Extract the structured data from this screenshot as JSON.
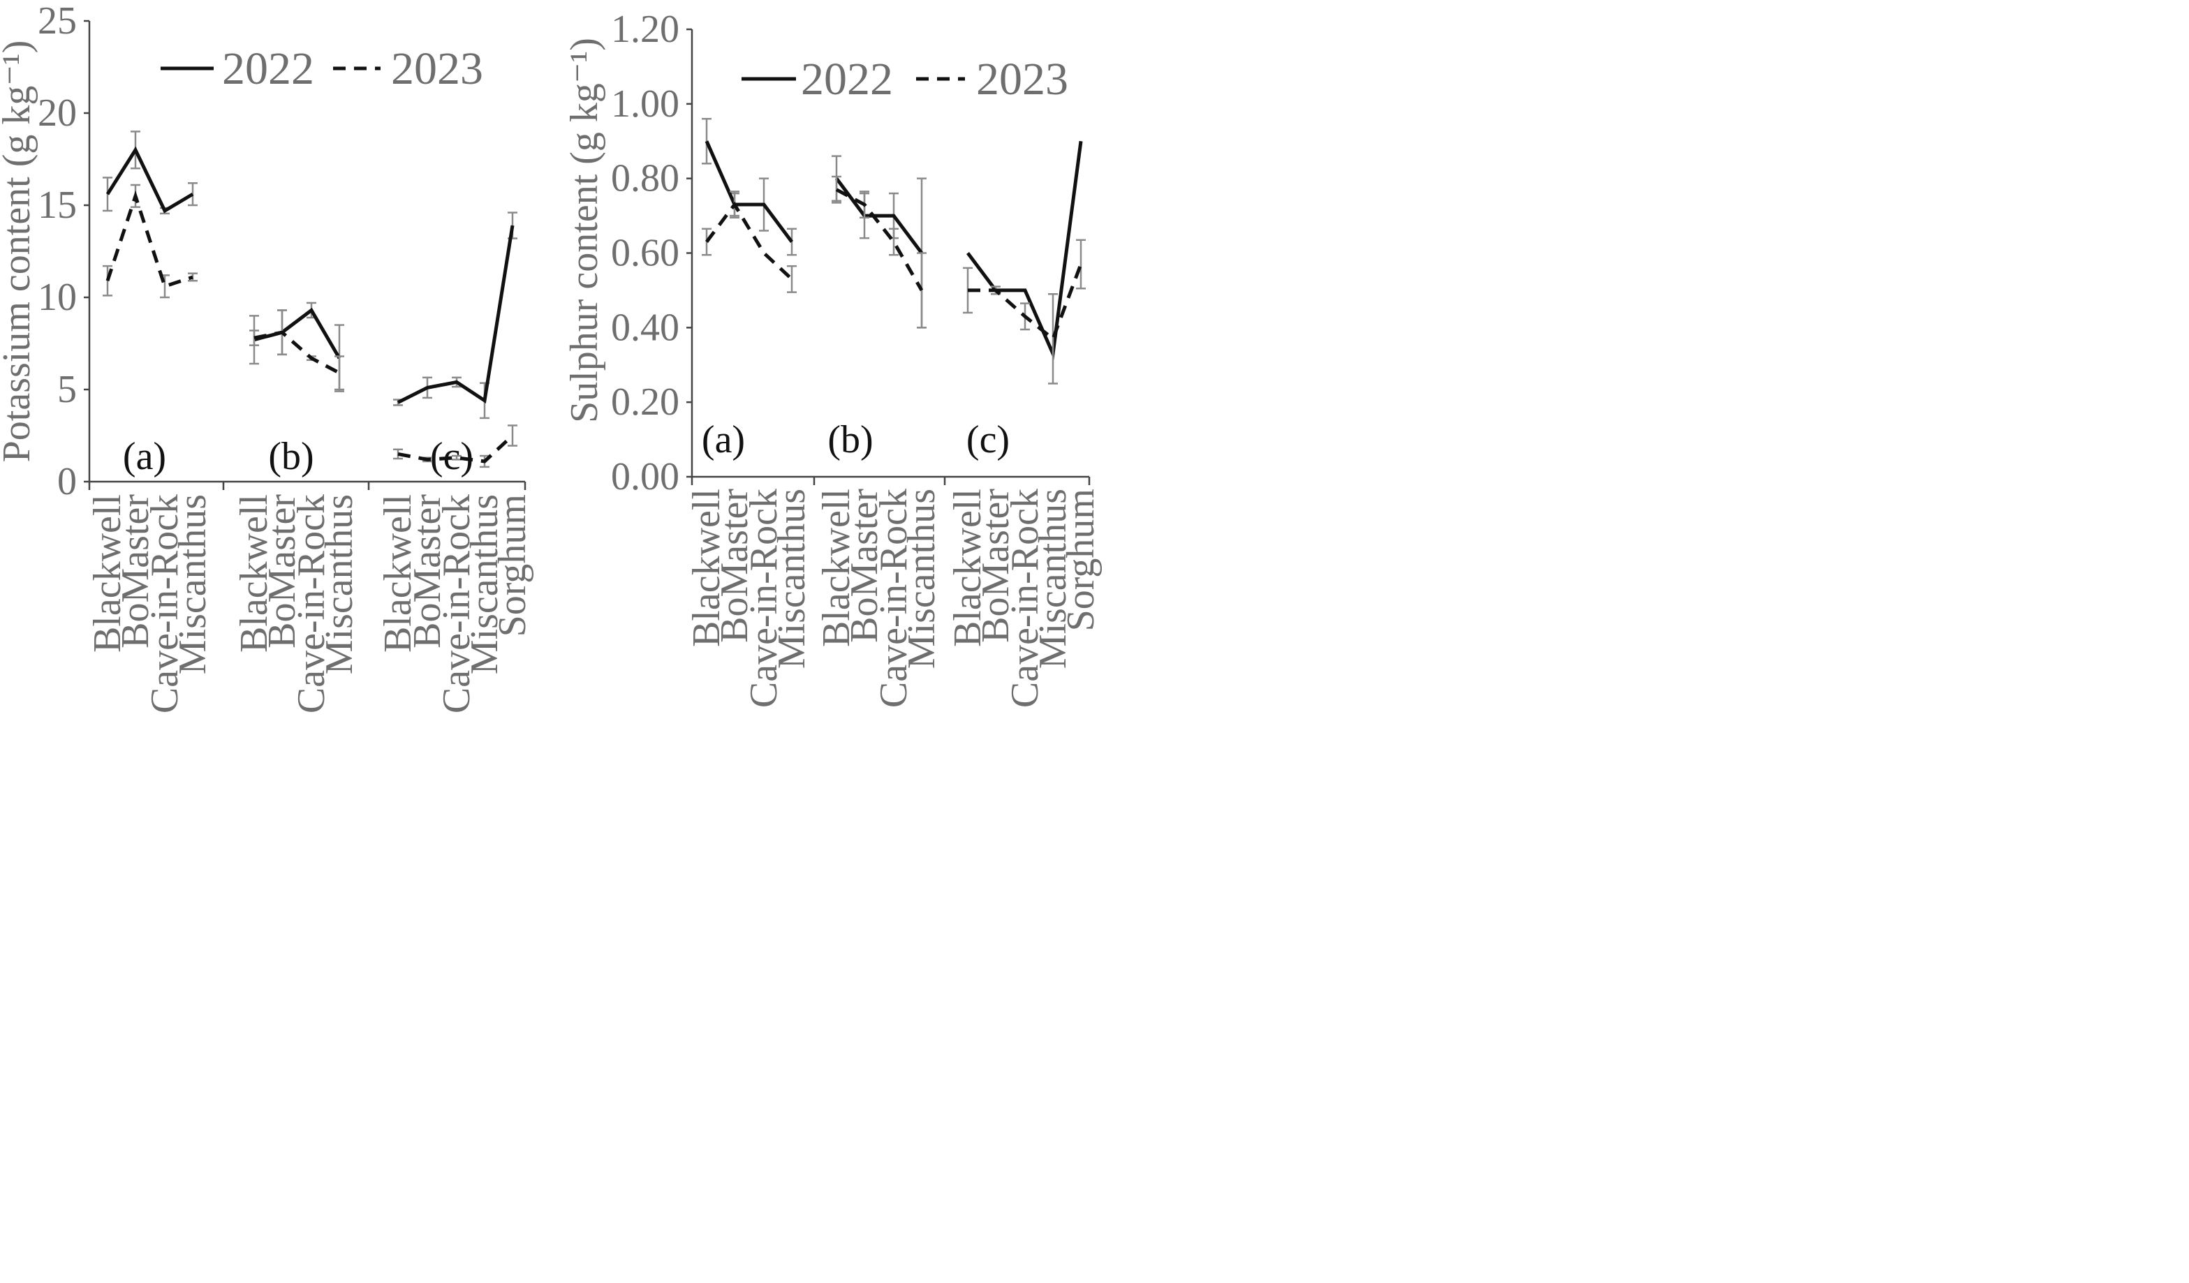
{
  "chart_data": [
    {
      "type": "line",
      "ylabel": "Potassium content (g kg⁻¹)",
      "ylim": [
        0,
        25
      ],
      "yticks": [
        0,
        5,
        10,
        15,
        20,
        25
      ],
      "tick_labels": [
        "0",
        "5",
        "10",
        "15",
        "20",
        "25"
      ],
      "legend": [
        "2022",
        "2023"
      ],
      "groups": [
        {
          "label": "(a)",
          "categories": [
            "Blackwell",
            "BoMaster",
            "Cave-in-Rock",
            "Miscanthus"
          ],
          "series": [
            {
              "name": "2022",
              "values": [
                15.6,
                18.0,
                14.7,
                15.6
              ],
              "errors": [
                0.9,
                1.0,
                0.15,
                0.6
              ]
            },
            {
              "name": "2023",
              "values": [
                10.9,
                15.5,
                10.6,
                11.1
              ],
              "errors": [
                0.8,
                0.6,
                0.6,
                0.2
              ]
            }
          ]
        },
        {
          "label": "(b)",
          "categories": [
            "Blackwell",
            "BoMaster",
            "Cave-in-Rock",
            "Miscanthus"
          ],
          "series": [
            {
              "name": "2022",
              "values": [
                7.7,
                8.1,
                9.3,
                6.7
              ],
              "errors": [
                1.3,
                1.2,
                0.4,
                1.8
              ]
            },
            {
              "name": "2023",
              "values": [
                7.8,
                8.1,
                6.7,
                5.9
              ],
              "errors": [
                0.4,
                1.2,
                0.1,
                0.9
              ]
            }
          ]
        },
        {
          "label": "(c)",
          "categories": [
            "Blackwell",
            "BoMaster",
            "Cave-in-Rock",
            "Miscanthus",
            "Sorghum"
          ],
          "series": [
            {
              "name": "2022",
              "values": [
                4.3,
                5.1,
                5.4,
                4.4,
                13.9
              ],
              "errors": [
                0.15,
                0.55,
                0.25,
                0.95,
                0.7
              ]
            },
            {
              "name": "2023",
              "values": [
                1.5,
                1.2,
                1.3,
                1.1,
                2.5
              ],
              "errors": [
                0.25,
                0.1,
                0.1,
                0.3,
                0.55
              ]
            }
          ]
        }
      ]
    },
    {
      "type": "line",
      "ylabel": "Sulphur content (g kg⁻¹)",
      "ylim": [
        0,
        1.2
      ],
      "yticks": [
        0,
        0.2,
        0.4,
        0.6,
        0.8,
        1.0,
        1.2
      ],
      "tick_labels": [
        "0.00",
        "0.20",
        "0.40",
        "0.60",
        "0.80",
        "1.00",
        "1.20"
      ],
      "legend": [
        "2022",
        "2023"
      ],
      "groups": [
        {
          "label": "(a)",
          "categories": [
            "Blackwell",
            "BoMaster",
            "Cave-in-Rock",
            "Miscanthus"
          ],
          "series": [
            {
              "name": "2022",
              "values": [
                0.9,
                0.73,
                0.73,
                0.63
              ],
              "errors": [
                0.06,
                0.03,
                0.07,
                0.035
              ]
            },
            {
              "name": "2023",
              "values": [
                0.63,
                0.73,
                0.6,
                0.53
              ],
              "errors": [
                0.035,
                0.035,
                0.0,
                0.035
              ]
            }
          ]
        },
        {
          "label": "(b)",
          "categories": [
            "Blackwell",
            "BoMaster",
            "Cave-in-Rock",
            "Miscanthus"
          ],
          "series": [
            {
              "name": "2022",
              "values": [
                0.8,
                0.7,
                0.7,
                0.6
              ],
              "errors": [
                0.06,
                0.06,
                0.06,
                0.2
              ]
            },
            {
              "name": "2023",
              "values": [
                0.77,
                0.73,
                0.63,
                0.5
              ],
              "errors": [
                0.035,
                0.035,
                0.035,
                0.1
              ]
            }
          ]
        },
        {
          "label": "(c)",
          "categories": [
            "Blackwell",
            "BoMaster",
            "Cave-in-Rock",
            "Miscanthus",
            "Sorghum"
          ],
          "series": [
            {
              "name": "2022",
              "values": [
                0.6,
                0.5,
                0.5,
                0.33,
                0.9
              ],
              "errors": [
                0.0,
                0.0,
                0.0,
                0.0,
                0.0
              ]
            },
            {
              "name": "2023",
              "values": [
                0.5,
                0.5,
                0.43,
                0.37,
                0.57
              ],
              "errors": [
                0.06,
                0.01,
                0.035,
                0.12,
                0.065
              ]
            }
          ]
        }
      ]
    }
  ]
}
